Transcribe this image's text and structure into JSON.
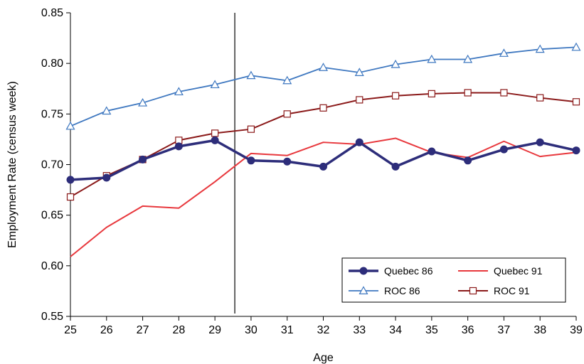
{
  "chart_data": {
    "type": "line",
    "xlabel": "Age",
    "ylabel": "Employment Rate (census week)",
    "xlim": [
      25,
      39
    ],
    "ylim": [
      0.55,
      0.85
    ],
    "x": [
      25,
      26,
      27,
      28,
      29,
      30,
      31,
      32,
      33,
      34,
      35,
      36,
      37,
      38,
      39
    ],
    "x_ticks": [
      "25",
      "26",
      "27",
      "28",
      "29",
      "30",
      "31",
      "32",
      "33",
      "34",
      "35",
      "36",
      "37",
      "38",
      "39"
    ],
    "y_ticks": [
      "0.55",
      "0.60",
      "0.65",
      "0.70",
      "0.75",
      "0.80",
      "0.85"
    ],
    "y_tick_values": [
      0.55,
      0.6,
      0.65,
      0.7,
      0.75,
      0.8,
      0.85
    ],
    "vertical_line_x": 29.55,
    "grid": false,
    "legend_position": "bottom-right",
    "series": [
      {
        "name": "Quebec 86",
        "color": "#2d2d7a",
        "marker": "circle",
        "values": [
          0.685,
          0.687,
          0.705,
          0.718,
          0.724,
          0.704,
          0.703,
          0.698,
          0.722,
          0.698,
          0.713,
          0.704,
          0.715,
          0.722,
          0.714
        ]
      },
      {
        "name": "Quebec  91",
        "color": "#e8383d",
        "marker": "none",
        "values": [
          0.609,
          0.638,
          0.659,
          0.657,
          0.683,
          0.711,
          0.709,
          0.722,
          0.72,
          0.726,
          0.712,
          0.707,
          0.723,
          0.708,
          0.712
        ]
      },
      {
        "name": "ROC 86",
        "color": "#3f78c0",
        "marker": "triangle",
        "values": [
          0.738,
          0.753,
          0.761,
          0.772,
          0.779,
          0.788,
          0.783,
          0.796,
          0.791,
          0.799,
          0.804,
          0.804,
          0.81,
          0.814,
          0.816
        ]
      },
      {
        "name": "ROC 91",
        "color": "#8b1a1a",
        "marker": "square",
        "values": [
          0.668,
          0.689,
          0.705,
          0.724,
          0.731,
          0.735,
          0.75,
          0.756,
          0.764,
          0.768,
          0.77,
          0.771,
          0.771,
          0.766,
          0.762
        ]
      }
    ]
  }
}
